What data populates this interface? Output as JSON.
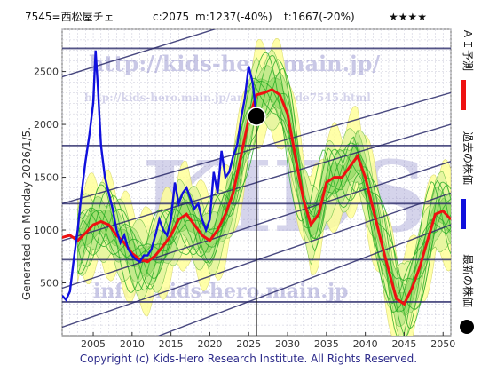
{
  "header": {
    "code_name": "7545=西松屋チェ",
    "current": "c:2075",
    "mid": "m:1237(-40%)",
    "target": "t:1667(-20%)",
    "stars": "★★★★"
  },
  "side_text": "Generated on Monday 2026/1/5.",
  "footer": "Copyright (c) Kids-Hero Research Institute. All Rights Reserved.",
  "watermarks": {
    "main": "http://kids-hero.main.jp/",
    "sub": "http://kids-hero.main.jp/analysis/code7545.html",
    "big": "KIDS",
    "email": "info@kids-hero.main.jp"
  },
  "legend": {
    "ai_forecast": "ＡＩ予測",
    "past_price": "過去の株価",
    "latest_price": "最新の株価"
  },
  "colors": {
    "past": "#1010dd",
    "forecast": "#ee1111",
    "band_fill": "#ffff99",
    "green": "#22aa22",
    "trend_line": "#2a2a6a",
    "latest_marker": "#000000"
  },
  "chart_data": {
    "type": "line",
    "title": "",
    "xlabel": "",
    "ylabel": "",
    "xlim": [
      2001,
      2051
    ],
    "ylim": [
      0,
      2900
    ],
    "xticks": [
      2005,
      2010,
      2015,
      2020,
      2025,
      2030,
      2035,
      2040,
      2045,
      2050
    ],
    "yticks": [
      500,
      1000,
      1500,
      2000,
      2500
    ],
    "grid": true,
    "horizontal_levels": [
      320,
      720,
      1250,
      1800,
      2720
    ],
    "latest_point": {
      "x": 2026.0,
      "y": 2075
    },
    "series": [
      {
        "key": "past",
        "x": [
          2001.0,
          2001.5,
          2002.0,
          2002.5,
          2003.0,
          2003.5,
          2004.0,
          2004.5,
          2005.0,
          2005.3,
          2005.6,
          2006.0,
          2006.5,
          2007.0,
          2007.5,
          2008.0,
          2008.5,
          2009.0,
          2009.5,
          2010.0,
          2010.5,
          2011.0,
          2011.5,
          2012.0,
          2012.5,
          2013.0,
          2013.5,
          2014.0,
          2014.5,
          2015.0,
          2015.5,
          2016.0,
          2016.5,
          2017.0,
          2017.5,
          2018.0,
          2018.5,
          2019.0,
          2019.5,
          2020.0,
          2020.5,
          2021.0,
          2021.5,
          2022.0,
          2022.5,
          2023.0,
          2023.5,
          2024.0,
          2024.5,
          2025.0,
          2025.5,
          2026.0
        ],
        "y": [
          380,
          340,
          420,
          720,
          1000,
          1350,
          1650,
          1900,
          2200,
          2700,
          2350,
          1800,
          1500,
          1350,
          1200,
          1000,
          880,
          950,
          820,
          760,
          720,
          700,
          760,
          760,
          820,
          950,
          1100,
          1000,
          950,
          1100,
          1450,
          1250,
          1350,
          1400,
          1300,
          1200,
          1250,
          1100,
          1000,
          1100,
          1550,
          1350,
          1750,
          1500,
          1550,
          1700,
          1800,
          2050,
          2250,
          2550,
          2400,
          2075
        ]
      },
      {
        "key": "forecast",
        "x": [
          2001.0,
          2002.0,
          2003.0,
          2004.0,
          2005.0,
          2006.0,
          2007.0,
          2008.0,
          2009.0,
          2010.0,
          2011.0,
          2012.0,
          2013.0,
          2014.0,
          2015.0,
          2016.0,
          2017.0,
          2018.0,
          2019.0,
          2020.0,
          2021.0,
          2022.0,
          2023.0,
          2024.0,
          2025.0,
          2026.0,
          2027.0,
          2028.0,
          2029.0,
          2030.0,
          2031.0,
          2032.0,
          2033.0,
          2034.0,
          2035.0,
          2036.0,
          2037.0,
          2038.0,
          2039.0,
          2040.0,
          2041.0,
          2042.0,
          2043.0,
          2044.0,
          2045.0,
          2046.0,
          2047.0,
          2048.0,
          2049.0,
          2050.0,
          2051.0
        ],
        "y": [
          930,
          950,
          900,
          970,
          1050,
          1080,
          1050,
          950,
          880,
          780,
          720,
          700,
          760,
          850,
          950,
          1100,
          1150,
          1050,
          950,
          900,
          1000,
          1150,
          1350,
          1700,
          2050,
          2280,
          2300,
          2330,
          2280,
          2100,
          1700,
          1300,
          1050,
          1150,
          1450,
          1500,
          1500,
          1600,
          1700,
          1500,
          1200,
          900,
          620,
          350,
          300,
          450,
          650,
          900,
          1150,
          1180,
          1100
        ]
      }
    ]
  }
}
